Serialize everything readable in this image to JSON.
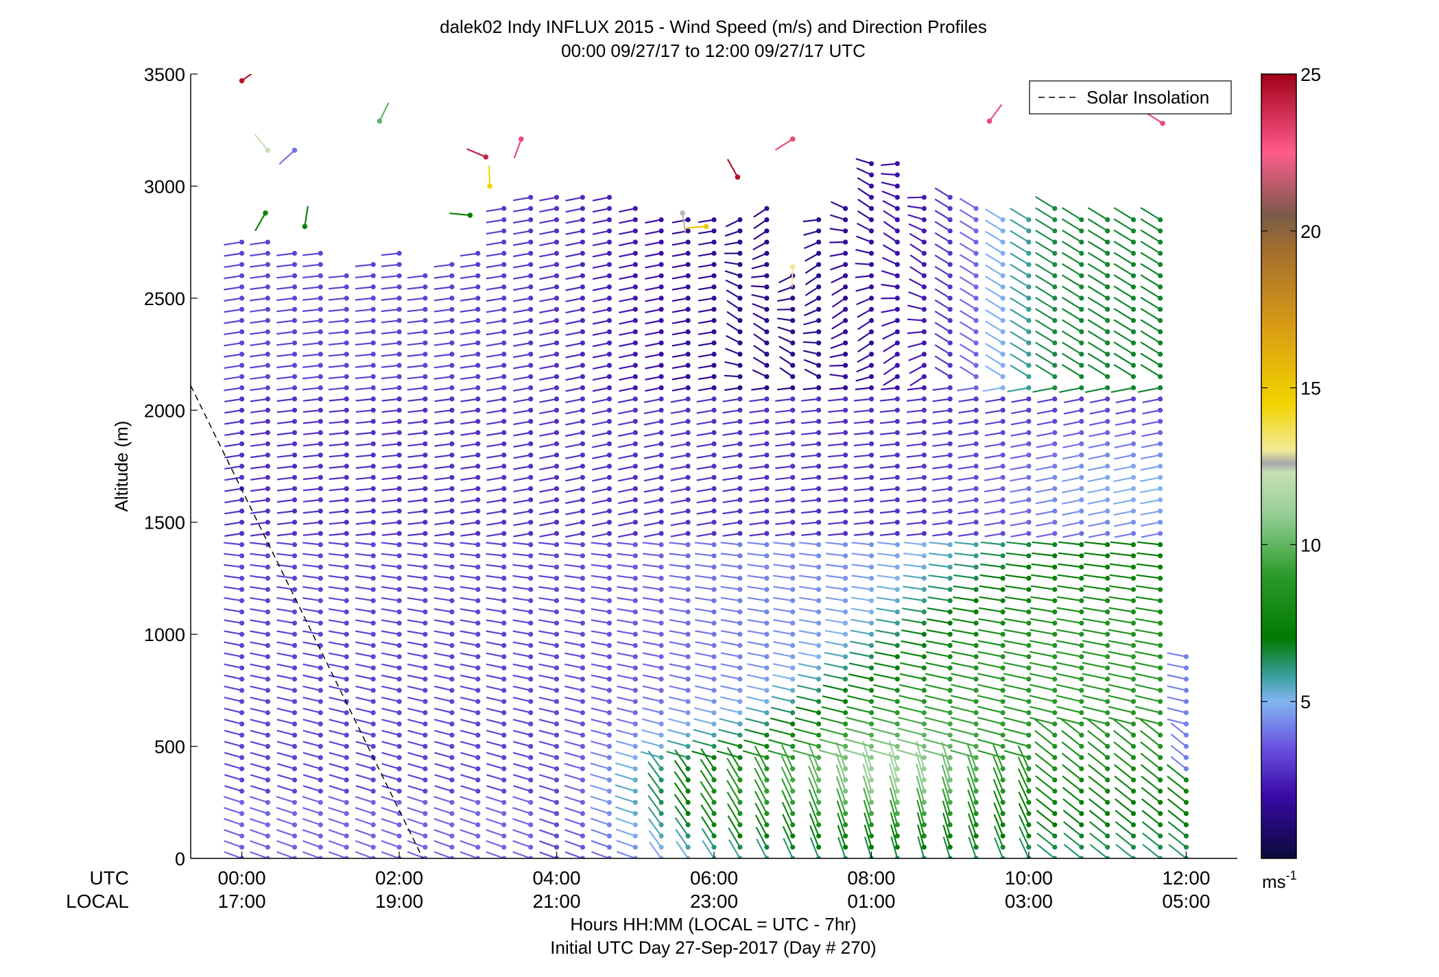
{
  "chart_data": {
    "type": "wind-barb-profile",
    "title": "dalek02 Indy INFLUX 2015 - Wind Speed (m/s) and Direction Profiles",
    "subtitle": "00:00 09/27/17 to 12:00 09/27/17  UTC",
    "ylabel": "Altitude (m)",
    "xlabel": "Hours HH:MM  (LOCAL = UTC - 7hr)",
    "xlabel2": "Initial UTC Day 27-Sep-2017 (Day # 270)",
    "utc_row_label": "UTC",
    "local_row_label": "LOCAL",
    "xlim_hours": [
      -0.65,
      12.65
    ],
    "ylim": [
      0,
      3500
    ],
    "yticks": [
      0,
      500,
      1000,
      1500,
      2000,
      2500,
      3000,
      3500
    ],
    "xticks_utc": [
      "00:00",
      "02:00",
      "04:00",
      "06:00",
      "08:00",
      "10:00",
      "12:00"
    ],
    "xticks_local": [
      "17:00",
      "19:00",
      "21:00",
      "23:00",
      "01:00",
      "03:00",
      "05:00"
    ],
    "legend": {
      "entry": "Solar Insolation",
      "placement": "top-right"
    },
    "solar_insolation_line": {
      "x_hours": [
        -0.65,
        2.3
      ],
      "y": [
        2110,
        0
      ]
    },
    "colorbar": {
      "ticks": [
        5,
        10,
        15,
        20,
        25
      ],
      "range": [
        0,
        25
      ],
      "unit": "ms",
      "unit_exponent": "-1",
      "stops": [
        {
          "v": 0,
          "c": "#0a0a3c"
        },
        {
          "v": 2,
          "c": "#3a0aa8"
        },
        {
          "v": 3.5,
          "c": "#6a50e0"
        },
        {
          "v": 5,
          "c": "#82b4f0"
        },
        {
          "v": 5.8,
          "c": "#3aa0a0"
        },
        {
          "v": 7,
          "c": "#007a00"
        },
        {
          "v": 9,
          "c": "#2a9a2a"
        },
        {
          "v": 11,
          "c": "#96cf96"
        },
        {
          "v": 12.3,
          "c": "#c8e0b4"
        },
        {
          "v": 12.6,
          "c": "#a8a8a8"
        },
        {
          "v": 13,
          "c": "#f2ea98"
        },
        {
          "v": 14.5,
          "c": "#f2d400"
        },
        {
          "v": 17,
          "c": "#d89a14"
        },
        {
          "v": 19.5,
          "c": "#a06c30"
        },
        {
          "v": 20.5,
          "c": "#7a5a4a"
        },
        {
          "v": 22.5,
          "c": "#ff5c8c"
        },
        {
          "v": 25,
          "c": "#a00018"
        }
      ]
    },
    "profile_times_hours": [
      0,
      0.33,
      0.67,
      1,
      1.33,
      1.67,
      2,
      2.33,
      2.67,
      3,
      3.33,
      3.67,
      4,
      4.33,
      4.67,
      5,
      5.33,
      5.67,
      6,
      6.33,
      6.67,
      7,
      7.33,
      7.67,
      8,
      8.33,
      8.67,
      9,
      9.33,
      9.67,
      10,
      10.33,
      10.67,
      11,
      11.33,
      11.67,
      12
    ],
    "profile_top_altitudes_m": [
      2780,
      2780,
      2700,
      2730,
      2600,
      2680,
      2700,
      2620,
      2680,
      2720,
      2900,
      2950,
      2950,
      2990,
      2950,
      2900,
      2880,
      2860,
      2860,
      2860,
      2900,
      2640,
      2880,
      2920,
      3120,
      3130,
      2990,
      2960,
      2900,
      2880,
      2880,
      2900,
      2880,
      2880,
      2880,
      2880,
      900
    ],
    "altitude_spacing_m": 50,
    "wind_speed_regimes_ms": [
      {
        "layer": "surface (0-250 m), 00:00-04:00 UTC",
        "speed_ms": 3.5
      },
      {
        "layer": "surface (0-450 m), 04:30-08:00 UTC",
        "speed_ms": 8
      },
      {
        "layer": "nocturnal low-level jet core (~350 m), 08:00-09:00 UTC",
        "speed_ms": 11
      },
      {
        "layer": "250-1000 m, 08:00-12:00 UTC",
        "speed_ms": 7
      },
      {
        "layer": "1000-1450 m, 07:00-12:00 UTC",
        "speed_ms": 5
      },
      {
        "layer": "1450-2100 m, all times",
        "speed_ms": 3
      },
      {
        "layer": "2100-2600 m, 05:00-08:00 UTC",
        "speed_ms": 1.5
      },
      {
        "layer": "2100-2900 m, 09:00-12:00 UTC",
        "speed_ms": 6
      }
    ],
    "upper_sparse_obs": [
      {
        "t": 0,
        "alt": 3470,
        "speed_ms": 24.5
      },
      {
        "t": 0.33,
        "alt": 3160,
        "speed_ms": 12.3
      },
      {
        "t": 0.67,
        "alt": 3160,
        "speed_ms": 4
      },
      {
        "t": 1.75,
        "alt": 3290,
        "speed_ms": 10
      },
      {
        "t": 3.1,
        "alt": 3130,
        "speed_ms": 24
      },
      {
        "t": 3.55,
        "alt": 3210,
        "speed_ms": 23
      },
      {
        "t": 3.15,
        "alt": 3000,
        "speed_ms": 14.5
      },
      {
        "t": 5.9,
        "alt": 2820,
        "speed_ms": 15
      },
      {
        "t": 5.6,
        "alt": 2880,
        "speed_ms": 12.5
      },
      {
        "t": 6.3,
        "alt": 3040,
        "speed_ms": 24.5
      },
      {
        "t": 7.0,
        "alt": 3210,
        "speed_ms": 23
      },
      {
        "t": 9.5,
        "alt": 3290,
        "speed_ms": 23
      },
      {
        "t": 11.7,
        "alt": 3280,
        "speed_ms": 23
      },
      {
        "t": 0.3,
        "alt": 2880,
        "speed_ms": 7.5
      },
      {
        "t": 0.8,
        "alt": 2820,
        "speed_ms": 7.5
      },
      {
        "t": 2.9,
        "alt": 2870,
        "speed_ms": 7.5
      },
      {
        "t": 7.0,
        "alt": 2640,
        "speed_ms": 13
      }
    ]
  }
}
